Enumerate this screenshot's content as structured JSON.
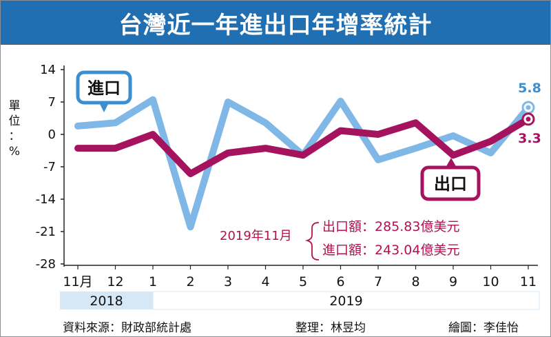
{
  "title": "台灣近一年進出口年增率統計",
  "unit_label": "單位：%",
  "source": {
    "data_source": "資料來源：財政部統計處",
    "compiled_by": "整理：林昱均",
    "drawn_by": "繪圖：李佳怡"
  },
  "annotation": {
    "date": "2019年11月",
    "export_line": "出口額：285.83億美元",
    "import_line": "進口額：243.04億美元"
  },
  "colors": {
    "title_bg": "#1f6fb2",
    "import": "#7fb8e6",
    "export": "#a5135f",
    "year_band": "#d6e8f6",
    "annotation_text": "#b0124e"
  },
  "chart_data": {
    "type": "line",
    "categories": [
      "11月",
      "12",
      "1",
      "2",
      "3",
      "4",
      "5",
      "6",
      "7",
      "8",
      "9",
      "10",
      "11"
    ],
    "year_groups": [
      {
        "label": "2018",
        "from_index": 0,
        "to_index": 2
      },
      {
        "label": "2019",
        "from_index": 2,
        "to_index": 12
      }
    ],
    "series": [
      {
        "name": "進口",
        "values": [
          1.8,
          2.5,
          7.5,
          -20.0,
          7.0,
          2.5,
          -4.5,
          7.2,
          -5.5,
          -3.0,
          -0.3,
          -4.0,
          5.8
        ]
      },
      {
        "name": "出口",
        "values": [
          -3.0,
          -3.0,
          0.0,
          -8.5,
          -4.0,
          -3.0,
          -4.5,
          0.8,
          0.0,
          2.5,
          -4.5,
          -1.5,
          3.3
        ]
      }
    ],
    "end_labels": [
      "5.8",
      "3.3"
    ],
    "yticks": [
      14,
      7,
      0,
      -7,
      -14,
      -21,
      -28
    ],
    "ylim": [
      -28,
      14
    ],
    "grid": false,
    "legend": "callouts"
  }
}
